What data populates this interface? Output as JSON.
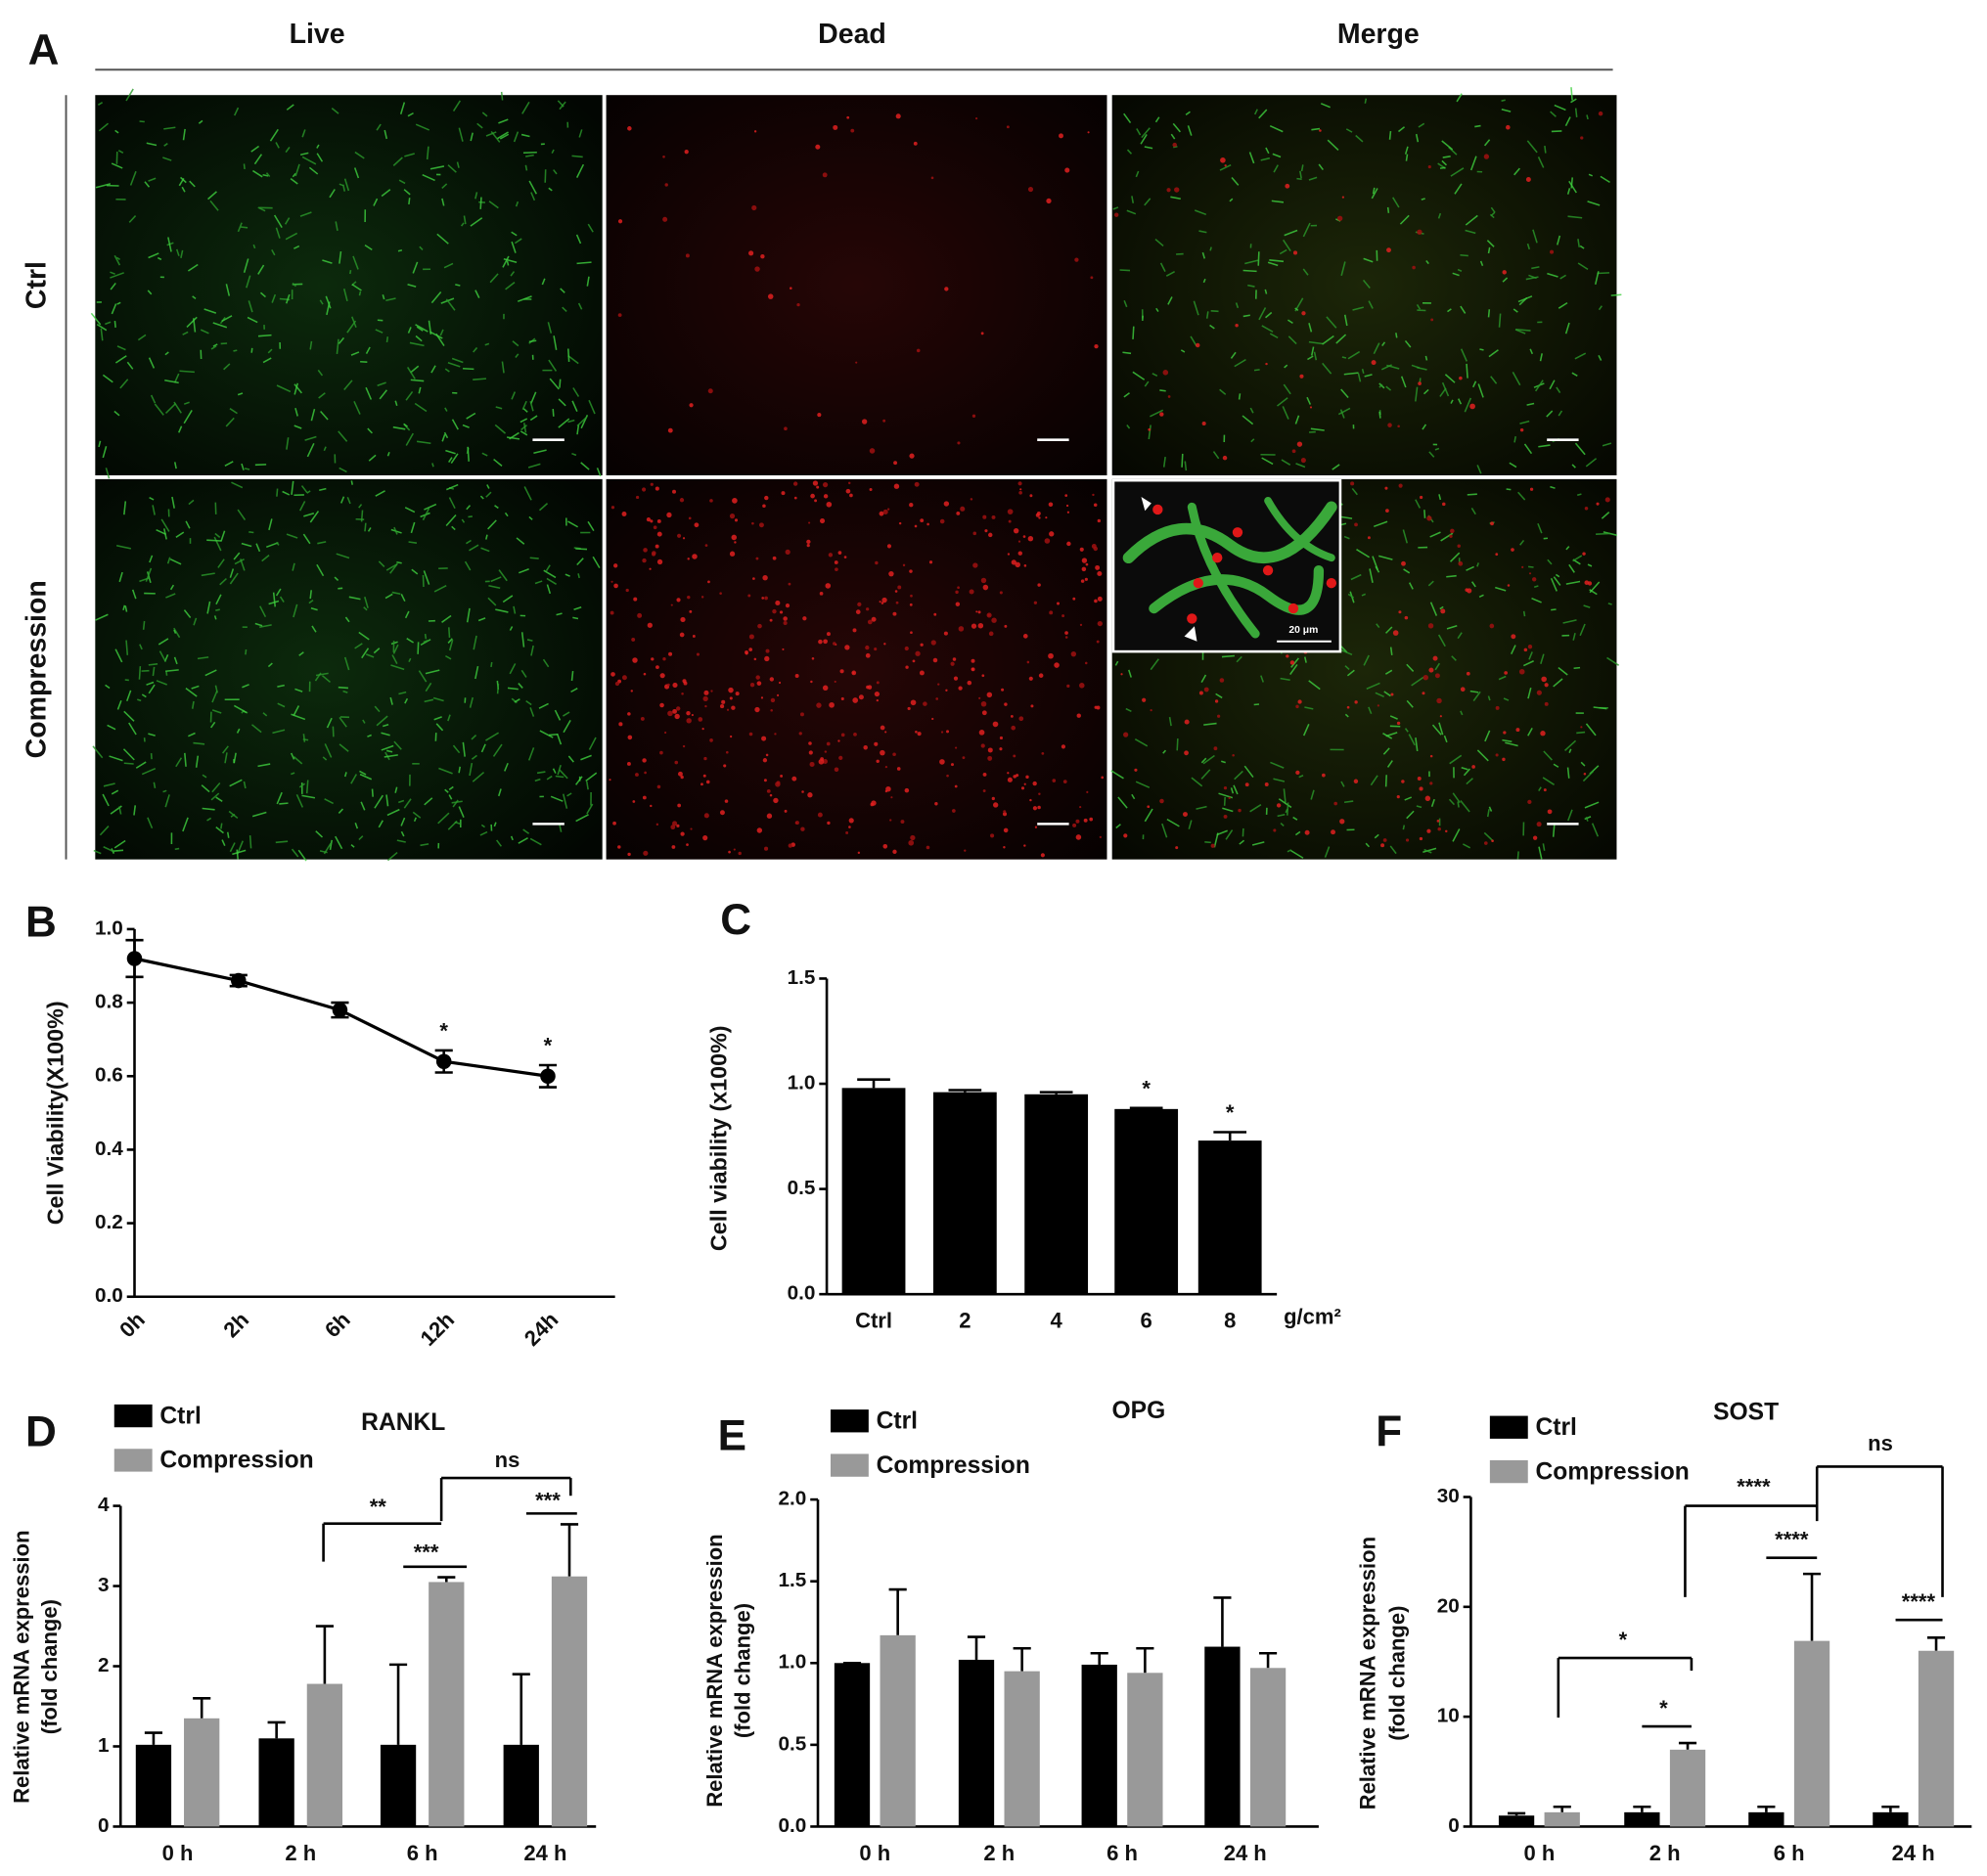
{
  "panel_a": {
    "label": "A",
    "columns": [
      "Live",
      "Dead",
      "Merge"
    ],
    "rows": [
      "Ctrl",
      "Compression"
    ],
    "inset_scale": "20 μm"
  },
  "chart_data": [
    {
      "type": "line",
      "panel": "B",
      "ylabel": "Cell Viability(X100%)",
      "categories": [
        "0h",
        "2h",
        "6h",
        "12h",
        "24h"
      ],
      "values": [
        0.92,
        0.86,
        0.78,
        0.64,
        0.6
      ],
      "errors": [
        0.05,
        0.015,
        0.02,
        0.03,
        0.03
      ],
      "color": "#000000",
      "ylim": [
        0,
        1.0
      ],
      "yticks": [
        {
          "value": 0,
          "label": "0.0"
        },
        0.2,
        0.4,
        0.6,
        0.8,
        {
          "value": 1,
          "label": "1.0"
        }
      ],
      "annotations": [
        "*",
        "*"
      ]
    },
    {
      "type": "bar",
      "panel": "C",
      "ylabel": "Cell viability (x100%)",
      "x_unit": "g/cm²",
      "categories": [
        "Ctrl",
        "2",
        "4",
        "6",
        "8"
      ],
      "values": [
        0.98,
        0.96,
        0.95,
        0.88,
        0.73
      ],
      "errors": [
        0.04,
        0.01,
        0.01,
        0.005,
        0.04
      ],
      "color": "#000000",
      "ylim": [
        0,
        1.5
      ],
      "yticks": [
        {
          "value": 0,
          "label": "0.0"
        },
        0.5,
        {
          "value": 1,
          "label": "1.0"
        },
        1.5
      ],
      "annotations": [
        "*",
        "*"
      ]
    },
    {
      "type": "grouped_bar",
      "panel": "D",
      "title": "RANKL",
      "ylabel": [
        "Relative mRNA expression",
        "(fold change)"
      ],
      "categories": [
        "0 h",
        "2 h",
        "6 h",
        "24 h"
      ],
      "series": [
        {
          "name": "Ctrl",
          "color": "#000000",
          "values": [
            1.02,
            1.1,
            1.02,
            1.02
          ],
          "errors": [
            0.15,
            0.2,
            1.0,
            0.88
          ]
        },
        {
          "name": "Compression",
          "color": "#999999",
          "values": [
            1.35,
            1.78,
            3.05,
            3.12
          ],
          "errors": [
            0.25,
            0.72,
            0.06,
            0.65
          ]
        }
      ],
      "ylim": [
        0,
        4
      ],
      "yticks": [
        0,
        1,
        2,
        3,
        4
      ],
      "annotations": [
        "**",
        "***",
        "ns",
        "***"
      ]
    },
    {
      "type": "grouped_bar",
      "panel": "E",
      "title": "OPG",
      "ylabel": [
        "Relative mRNA expression",
        "(fold change)"
      ],
      "categories": [
        "0 h",
        "2 h",
        "6 h",
        "24 h"
      ],
      "series": [
        {
          "name": "Ctrl",
          "color": "#000000",
          "values": [
            1.0,
            1.02,
            0.99,
            1.1
          ],
          "errors": [
            0,
            0.14,
            0.07,
            0.3
          ]
        },
        {
          "name": "Compression",
          "color": "#999999",
          "values": [
            1.17,
            0.95,
            0.94,
            0.97
          ],
          "errors": [
            0.28,
            0.14,
            0.15,
            0.09
          ]
        }
      ],
      "ylim": [
        0,
        2
      ],
      "yticks": [
        {
          "value": 0,
          "label": "0.0"
        },
        0.5,
        {
          "value": 1,
          "label": "1.0"
        },
        1.5,
        {
          "value": 2,
          "label": "2.0"
        }
      ]
    },
    {
      "type": "grouped_bar",
      "panel": "F",
      "title": "SOST",
      "ylabel": [
        "Relative mRNA expression",
        "(fold change)"
      ],
      "categories": [
        "0 h",
        "2 h",
        "6 h",
        "24 h"
      ],
      "series": [
        {
          "name": "Ctrl",
          "color": "#000000",
          "values": [
            1.0,
            1.3,
            1.3,
            1.3
          ],
          "errors": [
            0.2,
            0.5,
            0.5,
            0.5
          ]
        },
        {
          "name": "Compression",
          "color": "#999999",
          "values": [
            1.3,
            7.0,
            16.9,
            16.0
          ],
          "errors": [
            0.5,
            0.6,
            6.1,
            1.2
          ]
        }
      ],
      "ylim": [
        0,
        30
      ],
      "yticks": [
        0,
        10,
        20,
        30
      ],
      "annotations": [
        "*",
        "*",
        "****",
        "****",
        "ns",
        "****"
      ]
    }
  ]
}
